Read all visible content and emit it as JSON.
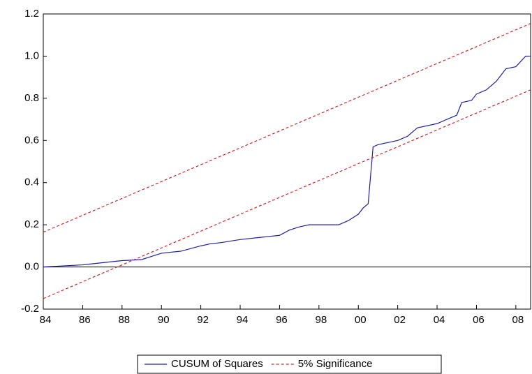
{
  "chart_data": {
    "type": "line",
    "x": [
      1984,
      1985,
      1986,
      1987,
      1988,
      1989,
      1989.5,
      1990,
      1991,
      1992,
      1992.5,
      1993,
      1994,
      1995,
      1996,
      1996.5,
      1997,
      1997.5,
      1998,
      1999,
      1999.5,
      2000,
      2000.25,
      2000.5,
      2000.75,
      2001,
      2002,
      2002.5,
      2003,
      2004,
      2004.5,
      2005,
      2005.25,
      2005.75,
      2006,
      2006.5,
      2007,
      2007.5,
      2008,
      2008.5,
      2008.75
    ],
    "series": [
      {
        "name": "CUSUM of Squares",
        "color": "#1f1fa0",
        "values": [
          0.0,
          0.005,
          0.01,
          0.02,
          0.03,
          0.035,
          0.05,
          0.065,
          0.075,
          0.1,
          0.11,
          0.115,
          0.13,
          0.14,
          0.15,
          0.175,
          0.19,
          0.2,
          0.2,
          0.2,
          0.22,
          0.25,
          0.28,
          0.3,
          0.57,
          0.58,
          0.6,
          0.62,
          0.66,
          0.68,
          0.7,
          0.72,
          0.78,
          0.79,
          0.82,
          0.84,
          0.88,
          0.94,
          0.95,
          1.0,
          1.0
        ]
      },
      {
        "name": "5% Significance",
        "color": "#cc2a2a",
        "dashed": true,
        "x": [
          1984,
          2008.75
        ],
        "values": [
          0.165,
          1.155
        ],
        "lower": [
          -0.15,
          0.84
        ]
      }
    ],
    "xlim": [
      1984,
      2008.75
    ],
    "xticks": [
      {
        "value": 1984,
        "label": "84"
      },
      {
        "value": 1986,
        "label": "86"
      },
      {
        "value": 1988,
        "label": "88"
      },
      {
        "value": 1990,
        "label": "90"
      },
      {
        "value": 1992,
        "label": "92"
      },
      {
        "value": 1994,
        "label": "94"
      },
      {
        "value": 1996,
        "label": "96"
      },
      {
        "value": 1998,
        "label": "98"
      },
      {
        "value": 2000,
        "label": "00"
      },
      {
        "value": 2002,
        "label": "02"
      },
      {
        "value": 2004,
        "label": "04"
      },
      {
        "value": 2006,
        "label": "06"
      },
      {
        "value": 2008,
        "label": "08"
      }
    ],
    "ylim": [
      -0.2,
      1.2
    ],
    "yticks": [
      {
        "value": -0.2,
        "label": "-0.2"
      },
      {
        "value": 0,
        "label": "0.0"
      },
      {
        "value": 0.2,
        "label": "0.2"
      },
      {
        "value": 0.4,
        "label": "0.4"
      },
      {
        "value": 0.6,
        "label": "0.6"
      },
      {
        "value": 0.8,
        "label": "0.8"
      },
      {
        "value": 1,
        "label": "1.0"
      },
      {
        "value": 1.2,
        "label": "1.2"
      }
    ],
    "zero_line": true,
    "grid": false
  }
}
